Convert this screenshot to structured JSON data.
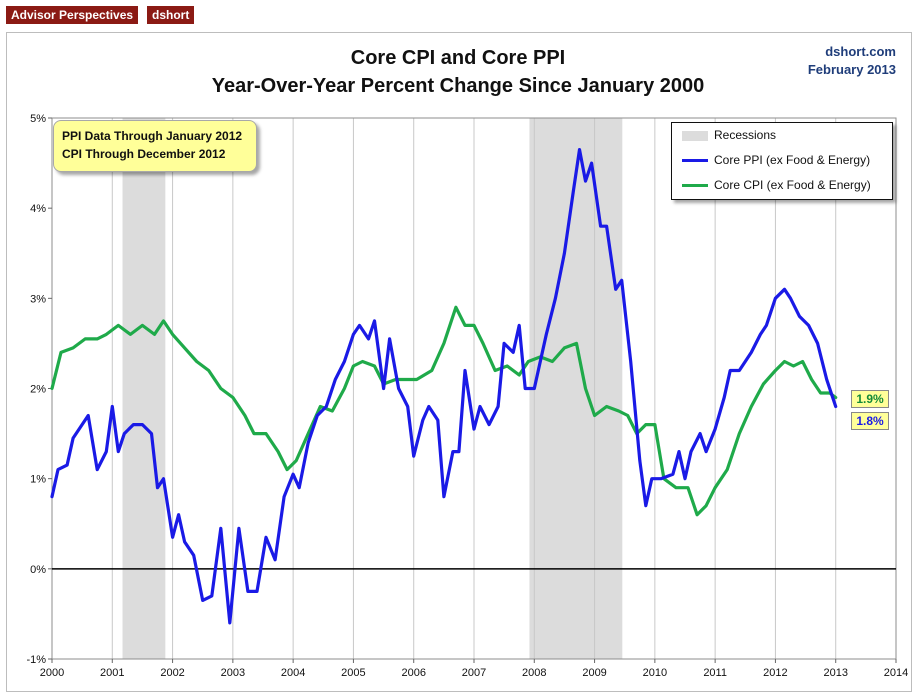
{
  "badges": [
    "Advisor Perspectives",
    "dshort"
  ],
  "source": {
    "site": "dshort.com",
    "date": "February 2013"
  },
  "note": {
    "line1": "PPI Data Through January 2012",
    "line2": "CPI Through December 2012"
  },
  "end_labels": {
    "cpi": "1.9%",
    "ppi": "1.8%"
  },
  "colors": {
    "ppi": "#1a1ae6",
    "cpi": "#1faa4a",
    "recession": "#dcdcdc",
    "note_bg": "#ffff99",
    "badge_bg": "#8b1a14"
  },
  "chart_data": {
    "type": "line",
    "title": "Core CPI and Core PPI",
    "subtitle": "Year-Over-Year Percent Change Since January 2000",
    "xlabel": "",
    "ylabel": "",
    "xlim": [
      2000,
      2014
    ],
    "ylim": [
      -1,
      5
    ],
    "x_ticks": [
      "2000",
      "2001",
      "2002",
      "2003",
      "2004",
      "2005",
      "2006",
      "2007",
      "2008",
      "2009",
      "2010",
      "2011",
      "2012",
      "2013",
      "2014"
    ],
    "y_ticks": [
      "-1%",
      "0%",
      "1%",
      "2%",
      "3%",
      "4%",
      "5%"
    ],
    "grid": "vertical",
    "legend": {
      "position": "top-right",
      "entries": [
        "Recessions",
        "Core PPI (ex Food & Energy)",
        "Core CPI (ex Food & Energy)"
      ]
    },
    "recessions": [
      [
        2001.17,
        2001.88
      ],
      [
        2007.92,
        2009.46
      ]
    ],
    "series": [
      {
        "name": "Core PPI (ex Food & Energy)",
        "color": "#1a1ae6",
        "points": [
          [
            2000.0,
            0.8
          ],
          [
            2000.1,
            1.1
          ],
          [
            2000.25,
            1.15
          ],
          [
            2000.35,
            1.45
          ],
          [
            2000.5,
            1.6
          ],
          [
            2000.6,
            1.7
          ],
          [
            2000.75,
            1.1
          ],
          [
            2000.9,
            1.3
          ],
          [
            2001.0,
            1.8
          ],
          [
            2001.1,
            1.3
          ],
          [
            2001.2,
            1.5
          ],
          [
            2001.35,
            1.6
          ],
          [
            2001.5,
            1.6
          ],
          [
            2001.65,
            1.5
          ],
          [
            2001.75,
            0.9
          ],
          [
            2001.85,
            1.0
          ],
          [
            2002.0,
            0.35
          ],
          [
            2002.1,
            0.6
          ],
          [
            2002.2,
            0.3
          ],
          [
            2002.35,
            0.15
          ],
          [
            2002.5,
            -0.35
          ],
          [
            2002.65,
            -0.3
          ],
          [
            2002.8,
            0.45
          ],
          [
            2002.95,
            -0.6
          ],
          [
            2003.1,
            0.45
          ],
          [
            2003.25,
            -0.25
          ],
          [
            2003.4,
            -0.25
          ],
          [
            2003.55,
            0.35
          ],
          [
            2003.7,
            0.1
          ],
          [
            2003.85,
            0.8
          ],
          [
            2004.0,
            1.05
          ],
          [
            2004.1,
            0.9
          ],
          [
            2004.25,
            1.4
          ],
          [
            2004.4,
            1.7
          ],
          [
            2004.55,
            1.8
          ],
          [
            2004.7,
            2.1
          ],
          [
            2004.85,
            2.3
          ],
          [
            2005.0,
            2.6
          ],
          [
            2005.1,
            2.7
          ],
          [
            2005.25,
            2.55
          ],
          [
            2005.35,
            2.75
          ],
          [
            2005.5,
            2.0
          ],
          [
            2005.6,
            2.55
          ],
          [
            2005.75,
            2.0
          ],
          [
            2005.9,
            1.8
          ],
          [
            2006.0,
            1.25
          ],
          [
            2006.15,
            1.65
          ],
          [
            2006.25,
            1.8
          ],
          [
            2006.4,
            1.65
          ],
          [
            2006.5,
            0.8
          ],
          [
            2006.65,
            1.3
          ],
          [
            2006.75,
            1.3
          ],
          [
            2006.85,
            2.2
          ],
          [
            2007.0,
            1.55
          ],
          [
            2007.1,
            1.8
          ],
          [
            2007.25,
            1.6
          ],
          [
            2007.4,
            1.8
          ],
          [
            2007.5,
            2.5
          ],
          [
            2007.65,
            2.4
          ],
          [
            2007.75,
            2.7
          ],
          [
            2007.85,
            2.0
          ],
          [
            2008.0,
            2.0
          ],
          [
            2008.2,
            2.6
          ],
          [
            2008.35,
            3.0
          ],
          [
            2008.5,
            3.5
          ],
          [
            2008.65,
            4.2
          ],
          [
            2008.75,
            4.65
          ],
          [
            2008.85,
            4.3
          ],
          [
            2008.95,
            4.5
          ],
          [
            2009.1,
            3.8
          ],
          [
            2009.2,
            3.8
          ],
          [
            2009.35,
            3.1
          ],
          [
            2009.45,
            3.2
          ],
          [
            2009.6,
            2.3
          ],
          [
            2009.75,
            1.2
          ],
          [
            2009.85,
            0.7
          ],
          [
            2009.95,
            1.0
          ],
          [
            2010.1,
            1.0
          ],
          [
            2010.3,
            1.05
          ],
          [
            2010.4,
            1.3
          ],
          [
            2010.5,
            1.0
          ],
          [
            2010.6,
            1.3
          ],
          [
            2010.75,
            1.5
          ],
          [
            2010.85,
            1.3
          ],
          [
            2011.0,
            1.55
          ],
          [
            2011.15,
            1.9
          ],
          [
            2011.25,
            2.2
          ],
          [
            2011.4,
            2.2
          ],
          [
            2011.6,
            2.4
          ],
          [
            2011.75,
            2.6
          ],
          [
            2011.85,
            2.7
          ],
          [
            2012.0,
            3.0
          ],
          [
            2012.15,
            3.1
          ],
          [
            2012.25,
            3.0
          ],
          [
            2012.4,
            2.8
          ],
          [
            2012.55,
            2.7
          ],
          [
            2012.7,
            2.5
          ],
          [
            2012.85,
            2.1
          ],
          [
            2013.0,
            1.8
          ]
        ]
      },
      {
        "name": "Core CPI (ex Food & Energy)",
        "color": "#1faa4a",
        "points": [
          [
            2000.0,
            2.0
          ],
          [
            2000.15,
            2.4
          ],
          [
            2000.35,
            2.45
          ],
          [
            2000.55,
            2.55
          ],
          [
            2000.75,
            2.55
          ],
          [
            2000.9,
            2.6
          ],
          [
            2001.1,
            2.7
          ],
          [
            2001.3,
            2.6
          ],
          [
            2001.5,
            2.7
          ],
          [
            2001.7,
            2.6
          ],
          [
            2001.85,
            2.75
          ],
          [
            2002.0,
            2.6
          ],
          [
            2002.2,
            2.45
          ],
          [
            2002.4,
            2.3
          ],
          [
            2002.6,
            2.2
          ],
          [
            2002.8,
            2.0
          ],
          [
            2003.0,
            1.9
          ],
          [
            2003.2,
            1.7
          ],
          [
            2003.35,
            1.5
          ],
          [
            2003.55,
            1.5
          ],
          [
            2003.75,
            1.3
          ],
          [
            2003.9,
            1.1
          ],
          [
            2004.05,
            1.2
          ],
          [
            2004.25,
            1.5
          ],
          [
            2004.45,
            1.8
          ],
          [
            2004.65,
            1.75
          ],
          [
            2004.85,
            2.0
          ],
          [
            2005.0,
            2.25
          ],
          [
            2005.15,
            2.3
          ],
          [
            2005.35,
            2.25
          ],
          [
            2005.5,
            2.05
          ],
          [
            2005.7,
            2.1
          ],
          [
            2005.9,
            2.1
          ],
          [
            2006.05,
            2.1
          ],
          [
            2006.3,
            2.2
          ],
          [
            2006.5,
            2.5
          ],
          [
            2006.7,
            2.9
          ],
          [
            2006.85,
            2.7
          ],
          [
            2007.0,
            2.7
          ],
          [
            2007.15,
            2.5
          ],
          [
            2007.35,
            2.2
          ],
          [
            2007.55,
            2.25
          ],
          [
            2007.75,
            2.15
          ],
          [
            2007.9,
            2.3
          ],
          [
            2008.1,
            2.35
          ],
          [
            2008.3,
            2.3
          ],
          [
            2008.5,
            2.45
          ],
          [
            2008.7,
            2.5
          ],
          [
            2008.85,
            2.0
          ],
          [
            2009.0,
            1.7
          ],
          [
            2009.2,
            1.8
          ],
          [
            2009.4,
            1.75
          ],
          [
            2009.55,
            1.7
          ],
          [
            2009.7,
            1.5
          ],
          [
            2009.85,
            1.6
          ],
          [
            2010.0,
            1.6
          ],
          [
            2010.15,
            1.0
          ],
          [
            2010.35,
            0.9
          ],
          [
            2010.55,
            0.9
          ],
          [
            2010.7,
            0.6
          ],
          [
            2010.85,
            0.7
          ],
          [
            2011.0,
            0.9
          ],
          [
            2011.2,
            1.1
          ],
          [
            2011.4,
            1.5
          ],
          [
            2011.6,
            1.8
          ],
          [
            2011.8,
            2.05
          ],
          [
            2012.0,
            2.2
          ],
          [
            2012.15,
            2.3
          ],
          [
            2012.3,
            2.25
          ],
          [
            2012.45,
            2.3
          ],
          [
            2012.6,
            2.1
          ],
          [
            2012.75,
            1.95
          ],
          [
            2012.9,
            1.95
          ],
          [
            2013.0,
            1.9
          ]
        ]
      }
    ]
  }
}
